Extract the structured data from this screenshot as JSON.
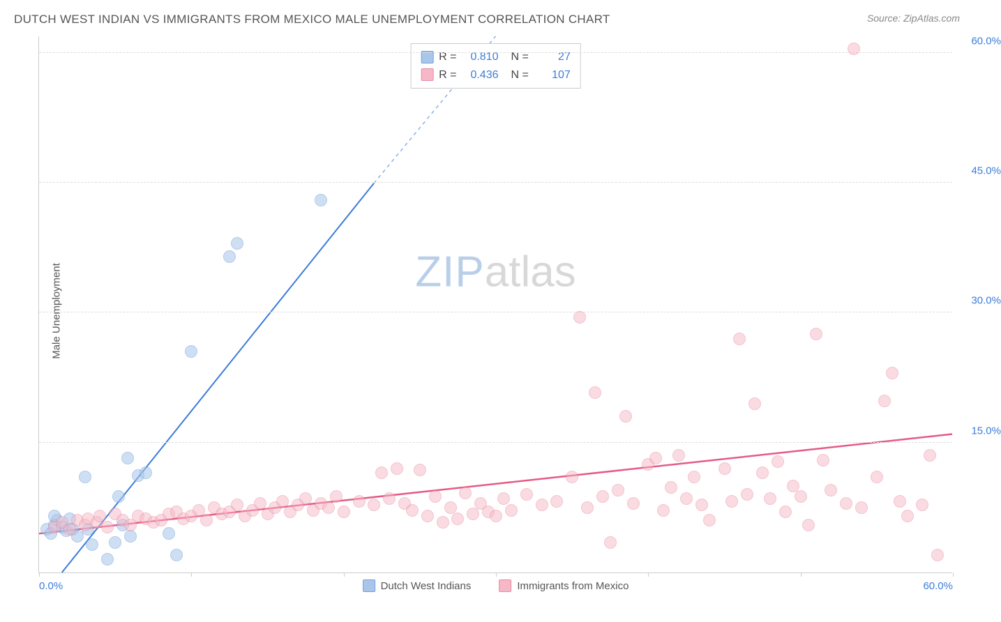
{
  "header": {
    "title": "DUTCH WEST INDIAN VS IMMIGRANTS FROM MEXICO MALE UNEMPLOYMENT CORRELATION CHART",
    "source": "Source: ZipAtlas.com"
  },
  "chart": {
    "type": "scatter",
    "y_axis_label": "Male Unemployment",
    "background_color": "#ffffff",
    "grid_color": "#dddddd",
    "axis_color": "#cccccc",
    "tick_label_color": "#3b7dd8",
    "tick_fontsize": 15,
    "axis_label_color": "#555555",
    "xlim": [
      0,
      60
    ],
    "ylim": [
      0,
      62
    ],
    "y_ticks": [
      {
        "v": 15,
        "label": "15.0%"
      },
      {
        "v": 30,
        "label": "30.0%"
      },
      {
        "v": 45,
        "label": "45.0%"
      },
      {
        "v": 60,
        "label": "60.0%"
      }
    ],
    "x_ticks": [
      {
        "v": 0,
        "label": "0.0%",
        "align": "left"
      },
      {
        "v": 10,
        "label": ""
      },
      {
        "v": 20,
        "label": ""
      },
      {
        "v": 30,
        "label": ""
      },
      {
        "v": 40,
        "label": ""
      },
      {
        "v": 50,
        "label": ""
      },
      {
        "v": 60,
        "label": "60.0%",
        "align": "right"
      }
    ],
    "watermark": {
      "zip": "ZIP",
      "atlas": "atlas",
      "zip_color": "#b9cfe8",
      "atlas_color": "#d8d8d8"
    },
    "series": [
      {
        "name": "Dutch West Indians",
        "fill_color": "#a9c6ea",
        "stroke_color": "#6fa0d9",
        "fill_opacity": 0.55,
        "marker_radius": 9,
        "trend": {
          "x1": 1.5,
          "y1": 0,
          "x2": 22,
          "y2": 45,
          "dash_from_x": 22,
          "dash_to_x": 30,
          "dash_to_y": 62,
          "color": "#3b7dd8",
          "width": 2
        },
        "R": "0.810",
        "N": "27",
        "points": [
          [
            0.5,
            5
          ],
          [
            0.8,
            4.5
          ],
          [
            1,
            5.5
          ],
          [
            1.2,
            6
          ],
          [
            1,
            6.5
          ],
          [
            1.5,
            5.2
          ],
          [
            1.8,
            4.8
          ],
          [
            2,
            6.2
          ],
          [
            2.2,
            5
          ],
          [
            2.5,
            4.2
          ],
          [
            3,
            11
          ],
          [
            3.2,
            5
          ],
          [
            3.5,
            3.2
          ],
          [
            4.5,
            1.5
          ],
          [
            5,
            3.5
          ],
          [
            5.2,
            8.8
          ],
          [
            5.5,
            5.5
          ],
          [
            5.8,
            13.2
          ],
          [
            6,
            4.2
          ],
          [
            6.5,
            11.2
          ],
          [
            7,
            11.5
          ],
          [
            8.5,
            4.5
          ],
          [
            9,
            2
          ],
          [
            10,
            25.5
          ],
          [
            12.5,
            36.5
          ],
          [
            13,
            38
          ],
          [
            18.5,
            43
          ]
        ]
      },
      {
        "name": "Immigrants from Mexico",
        "fill_color": "#f6b8c6",
        "stroke_color": "#e88aa2",
        "fill_opacity": 0.5,
        "marker_radius": 9,
        "trend": {
          "x1": 0,
          "y1": 4.5,
          "x2": 60,
          "y2": 16,
          "color": "#e55a85",
          "width": 2.5
        },
        "R": "0.436",
        "N": "107",
        "points": [
          [
            1,
            5.2
          ],
          [
            1.5,
            5.8
          ],
          [
            2,
            5
          ],
          [
            2.5,
            6
          ],
          [
            3,
            5.5
          ],
          [
            3.2,
            6.2
          ],
          [
            3.8,
            5.8
          ],
          [
            4,
            6.5
          ],
          [
            4.5,
            5.2
          ],
          [
            5,
            6.8
          ],
          [
            5.5,
            6
          ],
          [
            6,
            5.5
          ],
          [
            6.5,
            6.5
          ],
          [
            7,
            6.2
          ],
          [
            7.5,
            5.8
          ],
          [
            8,
            6
          ],
          [
            8.5,
            6.8
          ],
          [
            9,
            7
          ],
          [
            9.5,
            6.2
          ],
          [
            10,
            6.5
          ],
          [
            10.5,
            7.2
          ],
          [
            11,
            6
          ],
          [
            11.5,
            7.5
          ],
          [
            12,
            6.8
          ],
          [
            12.5,
            7
          ],
          [
            13,
            7.8
          ],
          [
            13.5,
            6.5
          ],
          [
            14,
            7.2
          ],
          [
            14.5,
            8
          ],
          [
            15,
            6.8
          ],
          [
            15.5,
            7.5
          ],
          [
            16,
            8.2
          ],
          [
            16.5,
            7
          ],
          [
            17,
            7.8
          ],
          [
            17.5,
            8.5
          ],
          [
            18,
            7.2
          ],
          [
            18.5,
            8
          ],
          [
            19,
            7.5
          ],
          [
            19.5,
            8.8
          ],
          [
            20,
            7
          ],
          [
            21,
            8.2
          ],
          [
            22,
            7.8
          ],
          [
            22.5,
            11.5
          ],
          [
            23,
            8.5
          ],
          [
            23.5,
            12
          ],
          [
            24,
            8
          ],
          [
            24.5,
            7.2
          ],
          [
            25,
            11.8
          ],
          [
            25.5,
            6.5
          ],
          [
            26,
            8.8
          ],
          [
            26.5,
            5.8
          ],
          [
            27,
            7.5
          ],
          [
            27.5,
            6.2
          ],
          [
            28,
            9.2
          ],
          [
            28.5,
            6.8
          ],
          [
            29,
            8
          ],
          [
            29.5,
            7
          ],
          [
            30,
            6.5
          ],
          [
            30.5,
            8.5
          ],
          [
            31,
            7.2
          ],
          [
            32,
            9
          ],
          [
            33,
            7.8
          ],
          [
            34,
            8.2
          ],
          [
            35,
            11
          ],
          [
            35.5,
            29.5
          ],
          [
            36,
            7.5
          ],
          [
            36.5,
            20.8
          ],
          [
            37,
            8.8
          ],
          [
            37.5,
            3.5
          ],
          [
            38,
            9.5
          ],
          [
            38.5,
            18
          ],
          [
            39,
            8
          ],
          [
            40,
            12.5
          ],
          [
            40.5,
            13.2
          ],
          [
            41,
            7.2
          ],
          [
            41.5,
            9.8
          ],
          [
            42,
            13.5
          ],
          [
            42.5,
            8.5
          ],
          [
            43,
            11
          ],
          [
            43.5,
            7.8
          ],
          [
            44,
            6
          ],
          [
            45,
            12
          ],
          [
            45.5,
            8.2
          ],
          [
            46,
            27
          ],
          [
            46.5,
            9
          ],
          [
            47,
            19.5
          ],
          [
            47.5,
            11.5
          ],
          [
            48,
            8.5
          ],
          [
            48.5,
            12.8
          ],
          [
            49,
            7
          ],
          [
            49.5,
            10
          ],
          [
            50,
            8.8
          ],
          [
            50.5,
            5.5
          ],
          [
            51,
            27.5
          ],
          [
            51.5,
            13
          ],
          [
            52,
            9.5
          ],
          [
            53,
            8
          ],
          [
            53.5,
            60.5
          ],
          [
            54,
            7.5
          ],
          [
            55,
            11
          ],
          [
            55.5,
            19.8
          ],
          [
            56,
            23
          ],
          [
            56.5,
            8.2
          ],
          [
            57,
            6.5
          ],
          [
            58,
            7.8
          ],
          [
            58.5,
            13.5
          ],
          [
            59,
            2
          ]
        ]
      }
    ],
    "stats_box": {
      "rows": [
        {
          "swatch_fill": "#a9c6ea",
          "swatch_stroke": "#6fa0d9",
          "r_label": "R =",
          "r_val": "0.810",
          "n_label": "N =",
          "n_val": "27"
        },
        {
          "swatch_fill": "#f6b8c6",
          "swatch_stroke": "#e88aa2",
          "r_label": "R =",
          "r_val": "0.436",
          "n_label": "N =",
          "n_val": "107"
        }
      ]
    },
    "bottom_legend": [
      {
        "swatch_fill": "#a9c6ea",
        "swatch_stroke": "#6fa0d9",
        "label": "Dutch West Indians"
      },
      {
        "swatch_fill": "#f6b8c6",
        "swatch_stroke": "#e88aa2",
        "label": "Immigrants from Mexico"
      }
    ]
  }
}
